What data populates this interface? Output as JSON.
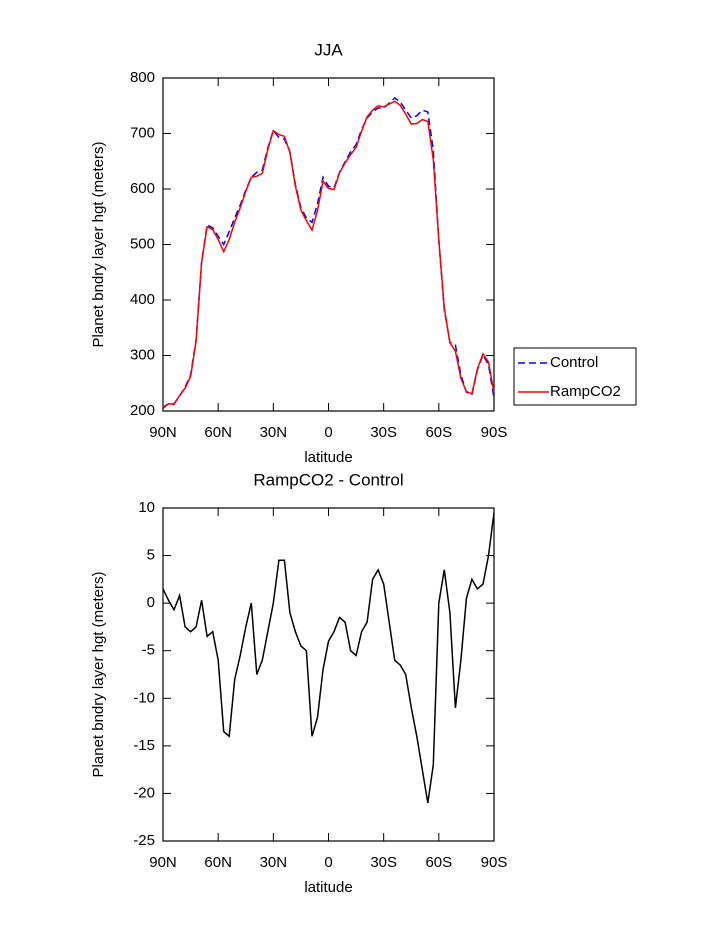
{
  "chart_data": [
    {
      "type": "line",
      "title": "JJA",
      "x_label": "latitude",
      "y_label": "Planet bndry layer hgt (meters)",
      "x": [
        90,
        87,
        84,
        81,
        78,
        75,
        72,
        69,
        66,
        63,
        60,
        57,
        54,
        51,
        48,
        45,
        42,
        39,
        36,
        33,
        30,
        27,
        24,
        21,
        18,
        15,
        12,
        9,
        6,
        3,
        0,
        -3,
        -6,
        -9,
        -12,
        -15,
        -18,
        -21,
        -24,
        -27,
        -30,
        -33,
        -36,
        -39,
        -42,
        -45,
        -48,
        -51,
        -54,
        -57,
        -60,
        -63,
        -66,
        -69,
        -72,
        -75,
        -78,
        -81,
        -84,
        -87,
        -90
      ],
      "xlim": [
        90,
        -90
      ],
      "xticks": [
        {
          "value": 90,
          "label": "90N"
        },
        {
          "value": 60,
          "label": "60N"
        },
        {
          "value": 30,
          "label": "30N"
        },
        0,
        {
          "value": -30,
          "label": "30S"
        },
        {
          "value": -60,
          "label": "60S"
        },
        {
          "value": -90,
          "label": "90S"
        }
      ],
      "ylim": [
        200,
        800
      ],
      "yticks": [
        200,
        300,
        400,
        500,
        600,
        700,
        800
      ],
      "legend": "right",
      "series": [
        {
          "name": "Control",
          "color": "#0000ff",
          "line_style": "dashed",
          "values": [
            205,
            213,
            213,
            227,
            243,
            265,
            328,
            468,
            535,
            530,
            515,
            500,
            523,
            548,
            571,
            598,
            621,
            630,
            634,
            674,
            705,
            693,
            690,
            667,
            608,
            566,
            548,
            540,
            573,
            621,
            605,
            602,
            630,
            649,
            667,
            680,
            707,
            728,
            739,
            746,
            746,
            755,
            764,
            757,
            742,
            728,
            732,
            742,
            739,
            670,
            508,
            382,
            324,
            319,
            265,
            234,
            229,
            274,
            301,
            283,
            223
          ]
        },
        {
          "name": "RampCO2",
          "color": "#ff0000",
          "line_style": "solid",
          "values": [
            207,
            213,
            212,
            228,
            241,
            262,
            326,
            468,
            532,
            527,
            509,
            487,
            509,
            540,
            566,
            596,
            621,
            623,
            628,
            671,
            705,
            698,
            695,
            666,
            605,
            562,
            543,
            526,
            561,
            614,
            601,
            599,
            629,
            647,
            662,
            675,
            704,
            730,
            742,
            750,
            748,
            753,
            758,
            751,
            735,
            717,
            718,
            725,
            722,
            653,
            508,
            386,
            323,
            308,
            259,
            235,
            231,
            276,
            303,
            288,
            233
          ]
        }
      ]
    },
    {
      "type": "line",
      "title": "RampCO2 - Control",
      "x_label": "latitude",
      "y_label": "Planet bndry layer hgt (meters)",
      "x": [
        90,
        87,
        84,
        81,
        78,
        75,
        72,
        69,
        66,
        63,
        60,
        57,
        54,
        51,
        48,
        45,
        42,
        39,
        36,
        33,
        30,
        27,
        24,
        21,
        18,
        15,
        12,
        9,
        6,
        3,
        0,
        -3,
        -6,
        -9,
        -12,
        -15,
        -18,
        -21,
        -24,
        -27,
        -30,
        -33,
        -36,
        -39,
        -42,
        -45,
        -48,
        -51,
        -54,
        -57,
        -60,
        -63,
        -66,
        -69,
        -72,
        -75,
        -78,
        -81,
        -84,
        -87,
        -90
      ],
      "xlim": [
        90,
        -90
      ],
      "xticks": [
        {
          "value": 90,
          "label": "90N"
        },
        {
          "value": 60,
          "label": "60N"
        },
        {
          "value": 30,
          "label": "30N"
        },
        0,
        {
          "value": -30,
          "label": "30S"
        },
        {
          "value": -60,
          "label": "60S"
        },
        {
          "value": -90,
          "label": "90S"
        }
      ],
      "ylim": [
        -25,
        10
      ],
      "yticks": [
        -25,
        -20,
        -15,
        -10,
        -5,
        0,
        5,
        10
      ],
      "color": "#000000",
      "values": [
        1.5,
        0.3,
        -0.7,
        0.8,
        -2.5,
        -3,
        -2.5,
        0.3,
        -3.5,
        -3,
        -6,
        -13.5,
        -14,
        -8,
        -5.5,
        -2.5,
        0,
        -7.5,
        -6,
        -3,
        0,
        4.5,
        4.5,
        -1,
        -3,
        -4.5,
        -5,
        -14,
        -12,
        -7,
        -4,
        -3,
        -1.5,
        -2,
        -5,
        -5.5,
        -3,
        -2,
        2.5,
        3.5,
        2,
        -2,
        -6,
        -6.5,
        -7.5,
        -11,
        -14,
        -17.5,
        -21,
        -17,
        0,
        3.5,
        -1,
        -11,
        -6,
        0.5,
        2.5,
        1.5,
        2,
        5,
        9.5
      ]
    }
  ]
}
